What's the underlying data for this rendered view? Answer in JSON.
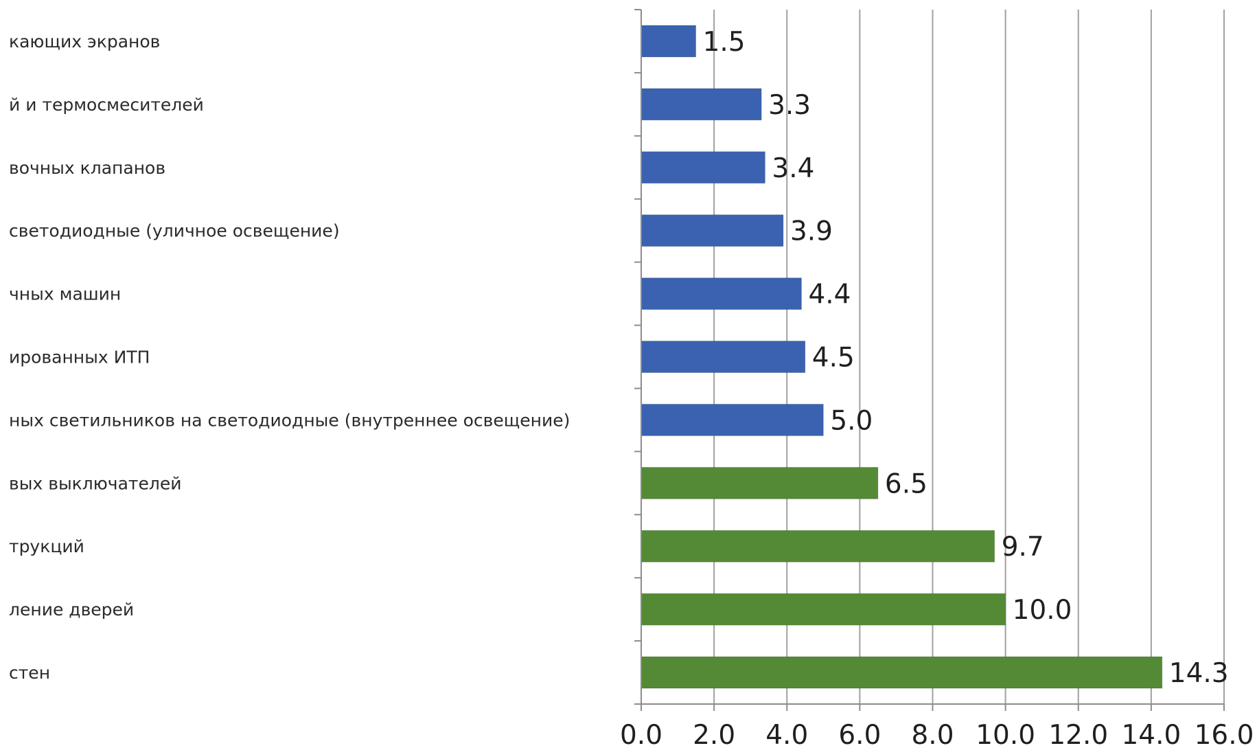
{
  "chart_data": {
    "type": "bar",
    "orientation": "horizontal",
    "categories": [
      "кающих экранов",
      "й и термосмесителей",
      "вочных клапанов",
      "светодиодные (уличное освещение)",
      "чных машин",
      "ированных ИТП",
      "ных светильников на светодиодные (внутреннее освещение)",
      "вых выключателей",
      "трукций",
      "ление дверей",
      "стен"
    ],
    "values": [
      1.5,
      3.3,
      3.4,
      3.9,
      4.4,
      4.5,
      5.0,
      6.5,
      9.7,
      10.0,
      14.3
    ],
    "value_labels": [
      "1.5",
      "3.3",
      "3.4",
      "3.9",
      "4.4",
      "4.5",
      "5.0",
      "6.5",
      "9.7",
      "10.0",
      "14.3"
    ],
    "bar_colors": [
      "#3a62b0",
      "#3a62b0",
      "#3a62b0",
      "#3a62b0",
      "#3a62b0",
      "#3a62b0",
      "#3a62b0",
      "#548a35",
      "#548a35",
      "#548a35",
      "#548a35"
    ],
    "xlim": [
      0,
      16
    ],
    "xticks": [
      "0.0",
      "2.0",
      "4.0",
      "6.0",
      "8.0",
      "10.0",
      "12.0",
      "14.0",
      "16.0"
    ],
    "grid": true,
    "title": "",
    "xlabel": "",
    "ylabel": ""
  },
  "colors": {
    "blue": "#3a62b0",
    "green": "#548a35",
    "grid": "#a0a0a0",
    "axis": "#8c8c8c"
  }
}
